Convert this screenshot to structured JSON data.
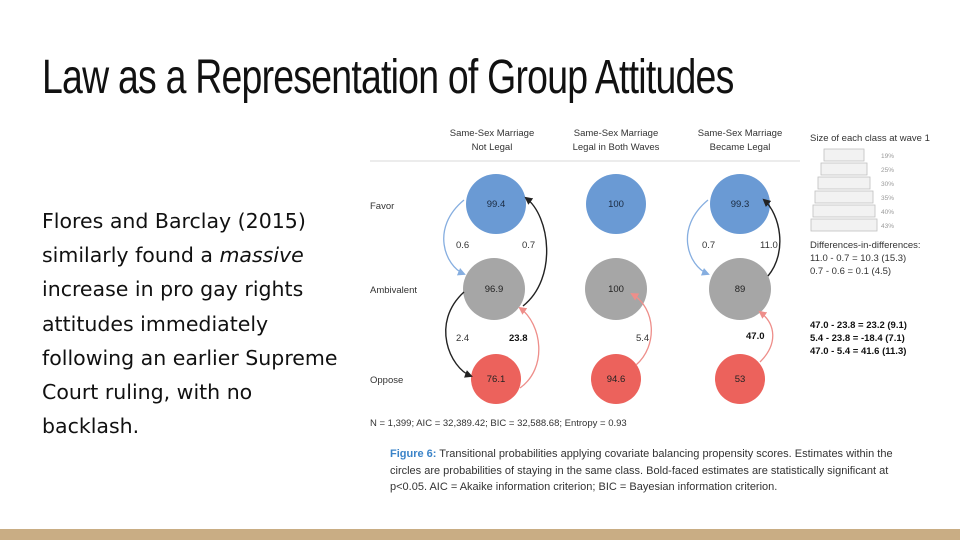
{
  "slide": {
    "title": "Law as a Representation of Group Attitudes",
    "body_before": "Flores and Barclay (2015) similarly found a ",
    "body_emphasis": "massive",
    "body_after": " increase in pro gay rights attitudes immediately following an earlier Supreme Court ruling, with no backlash."
  },
  "colors": {
    "favor": "#6a9ad4",
    "ambivalent": "#a6a6a6",
    "oppose": "#ec625c",
    "arrow_blue": "#86aee0",
    "arrow_red": "#ee8e8a",
    "arrow_dark": "#222222",
    "footer": "#c9ad84",
    "caption_accent": "#3a83c8"
  },
  "chart_data": {
    "type": "diagram",
    "columns": [
      {
        "line1": "Same-Sex Marriage",
        "line2": "Not Legal"
      },
      {
        "line1": "Same-Sex Marriage",
        "line2": "Legal in Both Waves"
      },
      {
        "line1": "Same-Sex Marriage",
        "line2": "Became Legal"
      }
    ],
    "row_labels": [
      "Favor",
      "Ambivalent",
      "Oppose"
    ],
    "stay_probabilities": [
      [
        99.4,
        96.9,
        76.1
      ],
      [
        100,
        100,
        94.6
      ],
      [
        99.3,
        89.0,
        53.0
      ]
    ],
    "transitions": [
      {
        "left_upper": "0.6",
        "right_upper": "0.7",
        "left_lower": "2.4",
        "right_lower": "23.8",
        "right_lower_bold": true
      },
      {
        "right_lower": "5.4"
      },
      {
        "left_upper": "0.7",
        "right_upper": "11.0",
        "right_lower": "47.0",
        "right_lower_bold": true
      }
    ],
    "size_legend": {
      "title": "Size of each class at wave 1",
      "levels": [
        "19%",
        "25%",
        "30%",
        "35%",
        "40%",
        "43%"
      ]
    },
    "did_title": "Differences-in-differences:",
    "did_plain": [
      "11.0 - 0.7 = 10.3 (15.3)",
      "0.7 - 0.6 = 0.1 (4.5)"
    ],
    "did_bold": [
      "47.0 - 23.8 = 23.2 (9.1)",
      "5.4 - 23.8 = -18.4 (7.1)",
      "47.0 - 5.4 = 41.6 (11.3)"
    ],
    "stats_note": "N = 1,399; AIC = 32,389.42; BIC = 32,588.68; Entropy = 0.93"
  },
  "caption": {
    "label": "Figure 6:",
    "text": " Transitional probabilities applying covariate balancing propensity scores. Estimates within the circles are probabilities of staying in the same class. Bold-faced estimates are statistically significant at p<0.05. AIC = Akaike information criterion; BIC = Bayesian information criterion."
  }
}
